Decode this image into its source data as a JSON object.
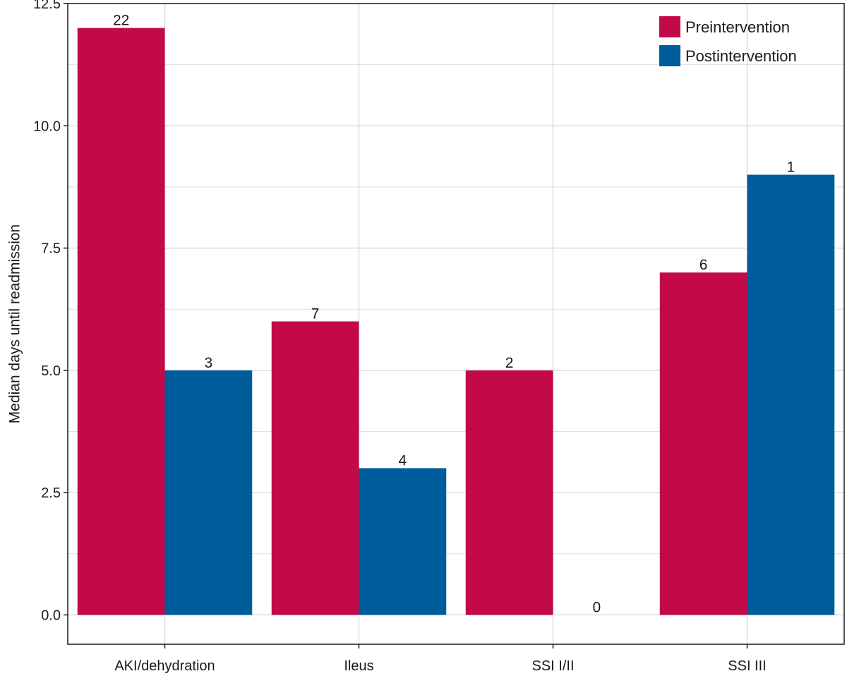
{
  "chart_data": {
    "type": "bar",
    "title": "",
    "xlabel": "",
    "ylabel": "Median days until readmission",
    "ylim": [
      -0.6,
      12.5
    ],
    "yticks": [
      0.0,
      2.5,
      5.0,
      7.5,
      10.0,
      12.5
    ],
    "ytick_labels": [
      "0.0",
      "2.5",
      "5.0",
      "7.5",
      "10.0",
      "12.5"
    ],
    "categories": [
      "AKI/dehydration",
      "Ileus",
      "SSI I/II",
      "SSI III"
    ],
    "series": [
      {
        "name": "Preintervention",
        "color": "#c20a4a",
        "values": [
          12,
          6,
          5,
          7
        ],
        "labels": [
          "22",
          "7",
          "2",
          "6"
        ]
      },
      {
        "name": "Postintervention",
        "color": "#005d9c",
        "values": [
          5,
          3,
          0,
          9
        ],
        "labels": [
          "3",
          "4",
          "0",
          "1"
        ]
      }
    ],
    "grid": true,
    "legend": "top-right"
  }
}
